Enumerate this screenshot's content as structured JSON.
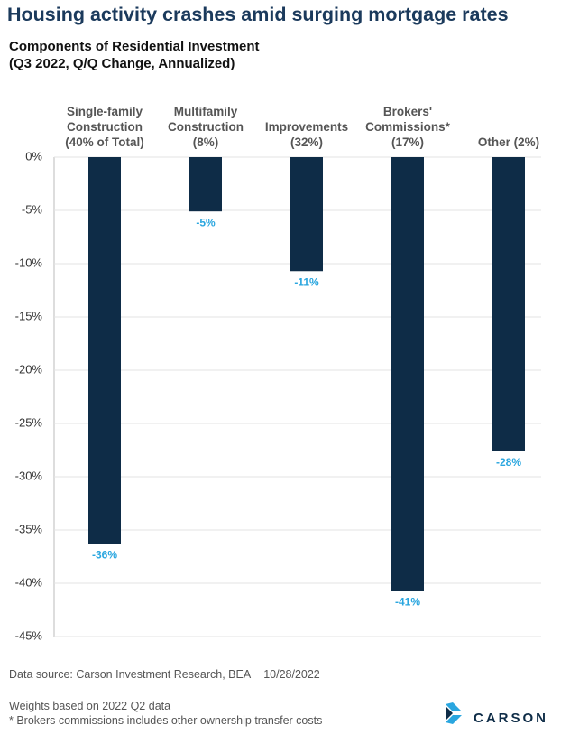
{
  "chart_data": {
    "type": "bar",
    "title": "Housing activity crashes amid surging mortgage rates",
    "subtitle": "Components of Residential Investment\n(Q3 2022, Q/Q Change, Annualized)",
    "categories": [
      "Single-family\nConstruction\n(40% of Total)",
      "Multifamily\nConstruction\n(8%)",
      "Improvements\n(32%)",
      "Brokers'\nCommissions*\n(17%)",
      "Other (2%)"
    ],
    "values": [
      -36.3,
      -5.1,
      -10.7,
      -40.7,
      -27.6
    ],
    "value_labels": [
      "-36%",
      "-5%",
      "-11%",
      "-41%",
      "-28%"
    ],
    "color": "#0e2c47",
    "label_color": "#2aa6df",
    "ylim": [
      -45,
      0
    ],
    "yticks": [
      {
        "value": 0,
        "label": "0%"
      },
      {
        "value": -5,
        "label": "-5%"
      },
      {
        "value": -10,
        "label": "-10%"
      },
      {
        "value": -15,
        "label": "-15%"
      },
      {
        "value": -20,
        "label": "-20%"
      },
      {
        "value": -25,
        "label": "-25%"
      },
      {
        "value": -30,
        "label": "-30%"
      },
      {
        "value": -35,
        "label": "-35%"
      },
      {
        "value": -40,
        "label": "-40%"
      },
      {
        "value": -45,
        "label": "-45%"
      }
    ],
    "grid": true,
    "source": "Data source: Carson Investment Research, BEA",
    "date": "10/28/2022",
    "notes": [
      "Weights based on 2022 Q2 data",
      "* Brokers commissions includes other ownership transfer costs"
    ],
    "brand": "CARSON"
  }
}
